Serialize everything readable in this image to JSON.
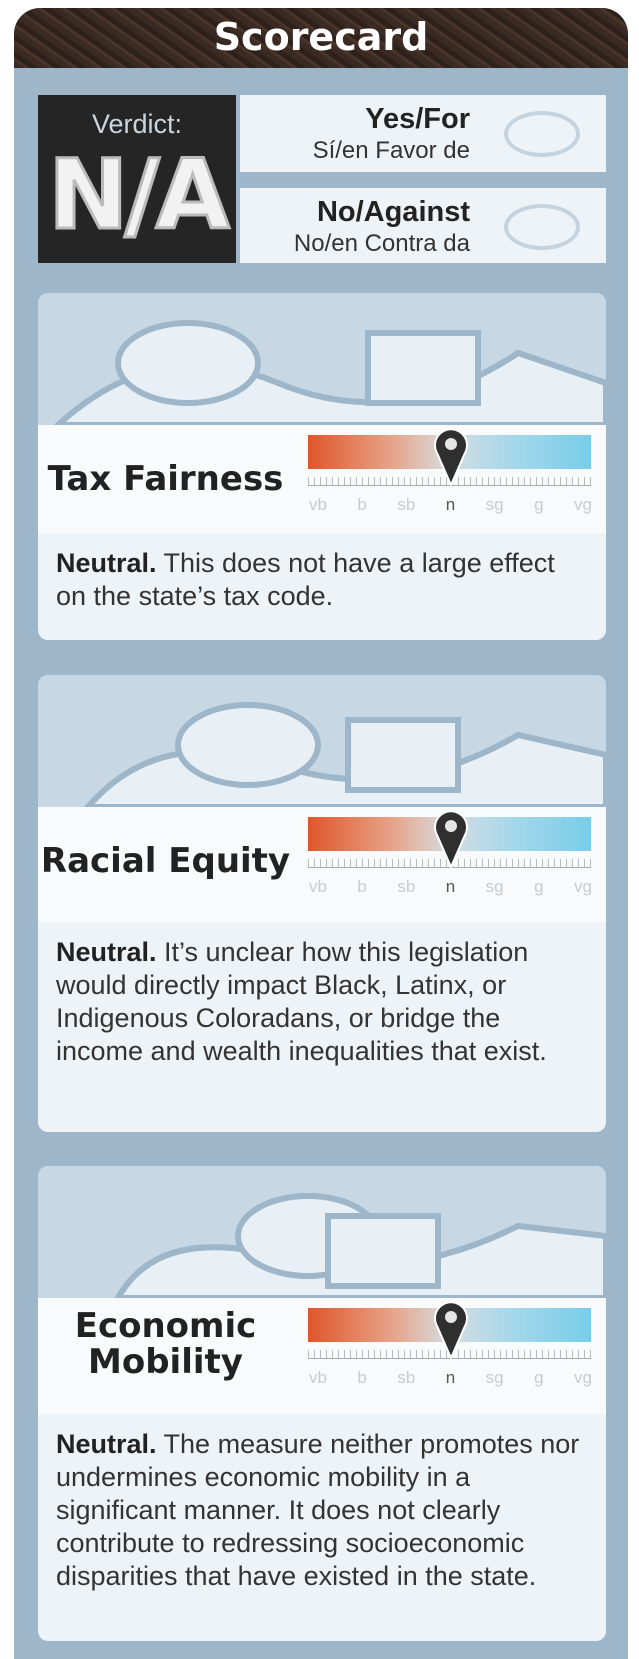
{
  "header": {
    "title": "Scorecard"
  },
  "verdict": {
    "label": "Verdict:",
    "value": "N/A",
    "options": [
      {
        "en": "Yes/For",
        "es": "Sí/en Favor de"
      },
      {
        "en": "No/Against",
        "es": "No/en Contra da"
      }
    ]
  },
  "scale_labels": [
    "vb",
    "b",
    "sb",
    "n",
    "sg",
    "g",
    "vg"
  ],
  "sections": [
    {
      "title": "Tax Fairness",
      "rating": "n",
      "lead": "Neutral.",
      "text": "This does not have a large effect on the state’s tax code."
    },
    {
      "title": "Racial Equity",
      "rating": "n",
      "lead": "Neutral.",
      "text": "It’s unclear how this legislation would directly impact Black, Latinx, or Indigenous Coloradans, or bridge the income and wealth inequalities that exist."
    },
    {
      "title": "Economic Mobility",
      "rating": "n",
      "lead": "Neutral.",
      "text": "The measure neither promotes nor undermines economic mobility in a significant manner. It does not clearly contribute to redressing socioeconomic disparities that have existed in the state."
    }
  ]
}
